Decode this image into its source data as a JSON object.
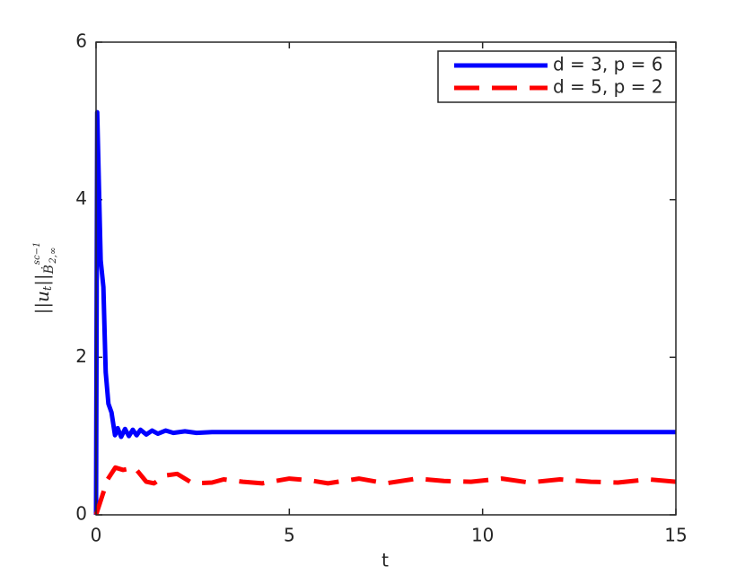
{
  "chart_data": {
    "type": "line",
    "xlabel": "t",
    "ylabel": {
      "norm_open": "||u",
      "norm_sub": "t",
      "norm_close": "||",
      "space": "Ḃ",
      "space_sup": "sc−1",
      "space_sub": "2,∞"
    },
    "xlim": [
      0,
      15
    ],
    "ylim": [
      0,
      6
    ],
    "xticks": [
      0,
      5,
      10,
      15
    ],
    "yticks": [
      0,
      2,
      4,
      6
    ],
    "legend": "north-east",
    "series": [
      {
        "name": "d = 3, p = 6",
        "color": "#0000ff",
        "style": "solid",
        "x": [
          0,
          0.03,
          0.12,
          0.19,
          0.25,
          0.32,
          0.4,
          0.49,
          0.56,
          0.65,
          0.75,
          0.85,
          0.95,
          1.05,
          1.15,
          1.3,
          1.45,
          1.6,
          1.8,
          2.0,
          2.3,
          2.6,
          3,
          4,
          5,
          6,
          7,
          8,
          9,
          10,
          11,
          12,
          13,
          14,
          15
        ],
        "values": [
          0,
          5.11,
          3.23,
          2.89,
          1.81,
          1.41,
          1.3,
          1.01,
          1.1,
          0.99,
          1.09,
          1.0,
          1.08,
          1.01,
          1.08,
          1.02,
          1.07,
          1.03,
          1.07,
          1.04,
          1.06,
          1.04,
          1.05,
          1.05,
          1.05,
          1.05,
          1.05,
          1.05,
          1.05,
          1.05,
          1.05,
          1.05,
          1.05,
          1.05,
          1.05
        ]
      },
      {
        "name": "d = 5, p = 2",
        "color": "#ff0000",
        "style": "dashed",
        "x": [
          0,
          0.1,
          0.3,
          0.5,
          0.7,
          1.0,
          1.3,
          1.5,
          1.8,
          2.1,
          2.5,
          3,
          3.3,
          3.8,
          4.3,
          5,
          5.5,
          6,
          6.8,
          7.5,
          8.3,
          9,
          9.7,
          10.5,
          11.2,
          12,
          12.8,
          13.5,
          14.3,
          15
        ],
        "values": [
          0,
          0.15,
          0.45,
          0.6,
          0.57,
          0.6,
          0.42,
          0.4,
          0.5,
          0.52,
          0.4,
          0.41,
          0.45,
          0.42,
          0.4,
          0.46,
          0.44,
          0.4,
          0.46,
          0.4,
          0.46,
          0.43,
          0.42,
          0.46,
          0.41,
          0.45,
          0.42,
          0.41,
          0.45,
          0.42
        ]
      }
    ]
  }
}
